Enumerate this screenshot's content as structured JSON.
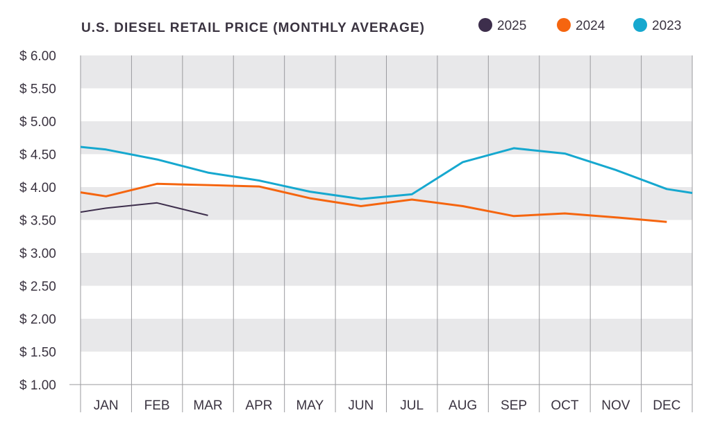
{
  "chart_data": {
    "type": "line",
    "title": "U.S. DIESEL RETAIL PRICE (MONTHLY AVERAGE)",
    "xlabel": "",
    "ylabel": "",
    "categories": [
      "JAN",
      "FEB",
      "MAR",
      "APR",
      "MAY",
      "JUN",
      "JUL",
      "AUG",
      "SEP",
      "OCT",
      "NOV",
      "DEC"
    ],
    "y_ticks": [
      6.0,
      5.5,
      5.0,
      4.5,
      4.0,
      3.5,
      3.0,
      2.5,
      2.0,
      1.5,
      1.0
    ],
    "y_tick_labels": [
      "$ 6.00",
      "$ 5.50",
      "$ 5.00",
      "$ 4.50",
      "$ 4.00",
      "$ 3.50",
      "$ 3.00",
      "$ 2.50",
      "$ 2.00",
      "$ 1.50",
      "$ 1.00"
    ],
    "ylim": [
      1.0,
      6.0
    ],
    "legend_position": "top-right",
    "series": [
      {
        "name": "2025",
        "color": "#3d2e4c",
        "x": [
          0,
          0.5,
          1.5,
          2.5
        ],
        "values": [
          3.62,
          3.68,
          3.76,
          3.57
        ]
      },
      {
        "name": "2024",
        "color": "#f5650f",
        "x": [
          0,
          0.5,
          1.5,
          2.5,
          3.5,
          4.5,
          5.5,
          6.5,
          7.5,
          8.5,
          9.5,
          10.5,
          11.5
        ],
        "values": [
          3.92,
          3.86,
          4.05,
          4.03,
          4.01,
          3.83,
          3.71,
          3.81,
          3.71,
          3.56,
          3.6,
          3.54,
          3.47
        ]
      },
      {
        "name": "2023",
        "color": "#16a8cf",
        "x": [
          0,
          0.5,
          1.5,
          2.5,
          3.5,
          4.5,
          5.5,
          6.5,
          7.5,
          8.5,
          9.5,
          10.5,
          11.5,
          12
        ],
        "values": [
          4.61,
          4.57,
          4.42,
          4.22,
          4.1,
          3.93,
          3.82,
          3.89,
          4.38,
          4.59,
          4.51,
          4.26,
          3.97,
          3.91
        ]
      }
    ]
  }
}
